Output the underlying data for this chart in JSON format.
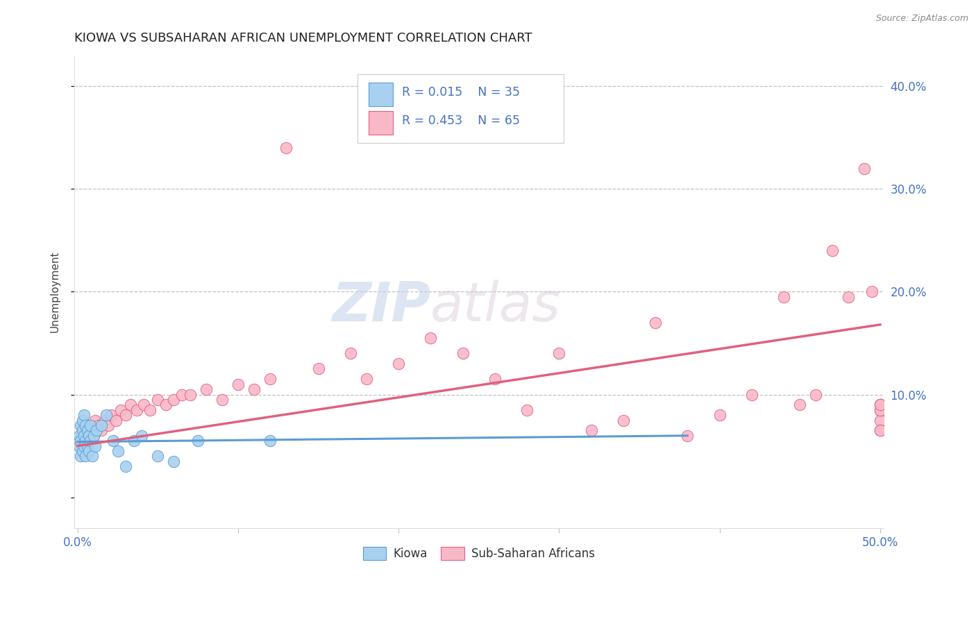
{
  "title": "KIOWA VS SUBSAHARAN AFRICAN UNEMPLOYMENT CORRELATION CHART",
  "source": "Source: ZipAtlas.com",
  "ylabel": "Unemployment",
  "xlim": [
    -0.002,
    0.502
  ],
  "ylim": [
    -0.03,
    0.43
  ],
  "yticks": [
    0.0,
    0.1,
    0.2,
    0.3,
    0.4
  ],
  "ytick_labels_right": [
    "",
    "10.0%",
    "20.0%",
    "30.0%",
    "40.0%"
  ],
  "xticks": [
    0.0,
    0.1,
    0.2,
    0.3,
    0.4,
    0.5
  ],
  "xtick_labels": [
    "0.0%",
    "",
    "",
    "",
    "",
    "50.0%"
  ],
  "kiowa_color": "#a8d1f0",
  "kiowa_edge_color": "#5b9bd5",
  "ssa_color": "#f9b8c8",
  "ssa_edge_color": "#e06080",
  "trend_kiowa_color": "#5b9bd5",
  "trend_ssa_color": "#e06080",
  "legend_r_kiowa": "R = 0.015",
  "legend_n_kiowa": "N = 35",
  "legend_r_ssa": "R = 0.453",
  "legend_n_ssa": "N = 65",
  "watermark_zip": "ZIP",
  "watermark_atlas": "atlas",
  "kiowa_x": [
    0.001,
    0.001,
    0.002,
    0.002,
    0.002,
    0.003,
    0.003,
    0.003,
    0.004,
    0.004,
    0.004,
    0.005,
    0.005,
    0.005,
    0.006,
    0.006,
    0.007,
    0.007,
    0.008,
    0.008,
    0.009,
    0.01,
    0.011,
    0.012,
    0.015,
    0.018,
    0.022,
    0.025,
    0.03,
    0.035,
    0.04,
    0.05,
    0.06,
    0.075,
    0.12
  ],
  "kiowa_y": [
    0.05,
    0.06,
    0.04,
    0.055,
    0.07,
    0.045,
    0.065,
    0.075,
    0.05,
    0.06,
    0.08,
    0.04,
    0.055,
    0.07,
    0.05,
    0.065,
    0.045,
    0.06,
    0.055,
    0.07,
    0.04,
    0.06,
    0.05,
    0.065,
    0.07,
    0.08,
    0.055,
    0.045,
    0.03,
    0.055,
    0.06,
    0.04,
    0.035,
    0.055,
    0.055
  ],
  "ssa_x": [
    0.001,
    0.002,
    0.003,
    0.004,
    0.005,
    0.006,
    0.007,
    0.008,
    0.009,
    0.01,
    0.011,
    0.012,
    0.013,
    0.015,
    0.017,
    0.019,
    0.021,
    0.024,
    0.027,
    0.03,
    0.033,
    0.037,
    0.041,
    0.045,
    0.05,
    0.055,
    0.06,
    0.065,
    0.07,
    0.08,
    0.09,
    0.1,
    0.11,
    0.12,
    0.13,
    0.15,
    0.17,
    0.18,
    0.2,
    0.22,
    0.24,
    0.26,
    0.28,
    0.3,
    0.32,
    0.34,
    0.36,
    0.38,
    0.4,
    0.42,
    0.44,
    0.45,
    0.46,
    0.47,
    0.48,
    0.49,
    0.495,
    0.5,
    0.5,
    0.5,
    0.5,
    0.5,
    0.5,
    0.5,
    0.5
  ],
  "ssa_y": [
    0.055,
    0.05,
    0.065,
    0.06,
    0.07,
    0.055,
    0.065,
    0.06,
    0.07,
    0.06,
    0.075,
    0.065,
    0.07,
    0.065,
    0.075,
    0.07,
    0.08,
    0.075,
    0.085,
    0.08,
    0.09,
    0.085,
    0.09,
    0.085,
    0.095,
    0.09,
    0.095,
    0.1,
    0.1,
    0.105,
    0.095,
    0.11,
    0.105,
    0.115,
    0.34,
    0.125,
    0.14,
    0.115,
    0.13,
    0.155,
    0.14,
    0.115,
    0.085,
    0.14,
    0.065,
    0.075,
    0.17,
    0.06,
    0.08,
    0.1,
    0.195,
    0.09,
    0.1,
    0.24,
    0.195,
    0.32,
    0.2,
    0.085,
    0.075,
    0.09,
    0.065,
    0.09,
    0.085,
    0.09,
    0.065
  ],
  "kiowa_trend_x0": 0.0,
  "kiowa_trend_x1": 0.38,
  "kiowa_trend_y0": 0.054,
  "kiowa_trend_y1": 0.06,
  "ssa_trend_x0": 0.0,
  "ssa_trend_x1": 0.5,
  "ssa_trend_y0": 0.05,
  "ssa_trend_y1": 0.168
}
